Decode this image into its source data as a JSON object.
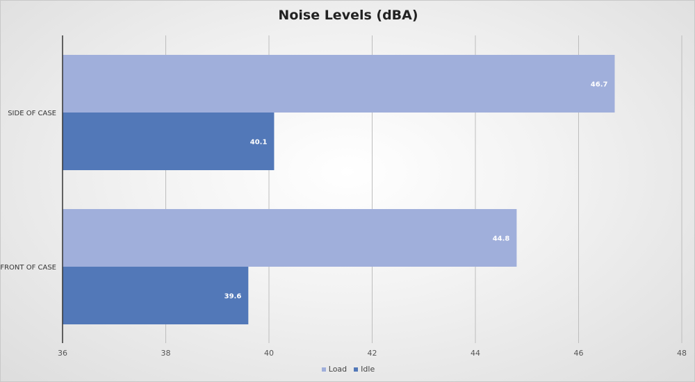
{
  "chart_data": {
    "type": "bar",
    "orientation": "horizontal",
    "title": "Noise Levels (dBA)",
    "categories": [
      "SIDE OF CASE",
      "FRONT OF CASE"
    ],
    "series": [
      {
        "name": "Load",
        "color": "#a0afdb",
        "values": [
          46.7,
          44.8
        ],
        "labels": [
          "46.7",
          "44.8"
        ]
      },
      {
        "name": "Idle",
        "color": "#5278b8",
        "values": [
          40.1,
          39.6
        ],
        "labels": [
          "40.1",
          "39.6"
        ]
      }
    ],
    "xlim": [
      36,
      48
    ],
    "xticks": [
      "36",
      "38",
      "40",
      "42",
      "44",
      "46",
      "48"
    ],
    "grid": true,
    "legend_position": "bottom",
    "xlabel": "",
    "ylabel": ""
  }
}
